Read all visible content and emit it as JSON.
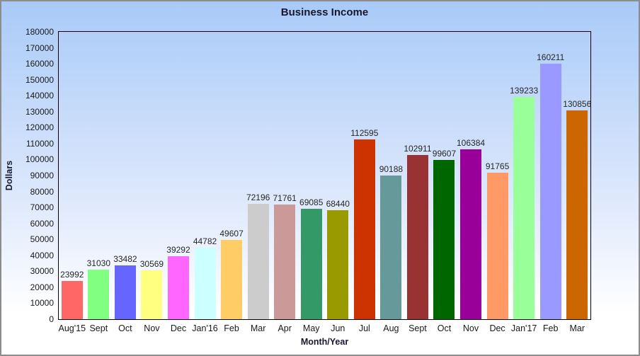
{
  "chart_data": {
    "type": "bar",
    "title": "Business Income",
    "xlabel": "Month/Year",
    "ylabel": "Dollars",
    "categories": [
      "Aug'15",
      "Sept",
      "Oct",
      "Nov",
      "Dec",
      "Jan'16",
      "Feb",
      "Mar",
      "Apr",
      "May",
      "Jun",
      "Jul",
      "Aug",
      "Sept",
      "Oct",
      "Nov",
      "Dec",
      "Jan'17",
      "Feb",
      "Mar"
    ],
    "values": [
      23992,
      31030,
      33482,
      30569,
      39292,
      44782,
      49607,
      72196,
      71761,
      69085,
      68440,
      112595,
      90188,
      102911,
      99607,
      106384,
      91765,
      139233,
      160211,
      130856
    ],
    "bar_colors": [
      "#FF6666",
      "#80FF80",
      "#6666FF",
      "#FFFF80",
      "#FF66FF",
      "#CCFFFF",
      "#FFCC66",
      "#CCCCCC",
      "#CC9999",
      "#339966",
      "#999900",
      "#CC3300",
      "#669999",
      "#993333",
      "#006600",
      "#990099",
      "#FF9966",
      "#99FF99",
      "#9999FF",
      "#CC6600"
    ],
    "ylim": [
      0,
      180000
    ],
    "y_ticks": [
      0,
      10000,
      20000,
      30000,
      40000,
      50000,
      60000,
      70000,
      80000,
      90000,
      100000,
      110000,
      120000,
      130000,
      140000,
      150000,
      160000,
      170000,
      180000
    ],
    "grid": false,
    "legend": false,
    "value_labels": true
  },
  "style": {
    "background_top": "#A8CAF8",
    "background_bottom": "#FFFFFF",
    "outer_border": "#8C8C8C",
    "plot_border": "#000000",
    "title_color": "#17172E",
    "tick_label_color": "#1A1A1A",
    "value_label_color": "#262626"
  }
}
